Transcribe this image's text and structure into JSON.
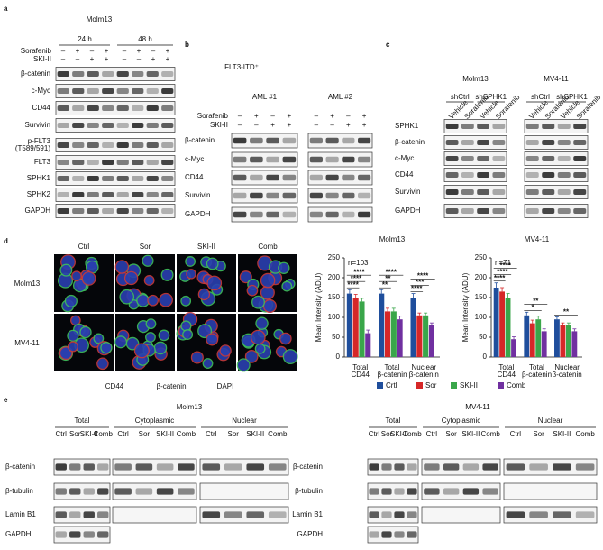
{
  "a": {
    "label": "a",
    "title": "Molm13",
    "timepoints": [
      "24 h",
      "48 h"
    ],
    "treatments": [
      "Sorafenib",
      "SKI-II"
    ],
    "signs": [
      [
        "–",
        "+",
        "–",
        "+",
        "–",
        "+",
        "–",
        "+"
      ],
      [
        "–",
        "–",
        "+",
        "+",
        "–",
        "–",
        "+",
        "+"
      ]
    ],
    "rows": [
      "β-catenin",
      "c-Myc",
      "CD44",
      "Survivin",
      [
        "p-FLT3",
        "(T589/591)"
      ],
      "FLT3",
      "SPHK1",
      "SPHK2",
      "GAPDH"
    ]
  },
  "b": {
    "label": "b",
    "title": "FLT3-ITD⁺",
    "groups": [
      "AML #1",
      "AML #2"
    ],
    "treatments": [
      "Sorafenib",
      "SKI-II"
    ],
    "signs": [
      [
        "–",
        "+",
        "–",
        "+"
      ],
      [
        "–",
        "–",
        "+",
        "+"
      ]
    ],
    "rows": [
      "β-catenin",
      "c-Myc",
      "CD44",
      "Survivin",
      "GAPDH"
    ]
  },
  "c": {
    "label": "c",
    "cell_lines": [
      "Molm13",
      "MV4-11"
    ],
    "shrna": [
      "shCtrl",
      "shSPHK1"
    ],
    "lanes": [
      "Vehicle",
      "Sorafenib",
      "Vehicle",
      "Sorafenib"
    ],
    "rows": [
      "SPHK1",
      "β-catenin",
      "c-Myc",
      "CD44",
      "Survivin",
      "GAPDH"
    ]
  },
  "d": {
    "label": "d",
    "columns": [
      "Ctrl",
      "Sor",
      "SKI-II",
      "Comb"
    ],
    "rows": [
      "Molm13",
      "MV4-11"
    ],
    "stains": [
      {
        "name": "CD44",
        "color": "#d62728"
      },
      {
        "name": "β-catenin",
        "color": "#2ca02c"
      },
      {
        "name": "DAPI",
        "color": "#1f3fbf"
      }
    ]
  },
  "e": {
    "label": "e",
    "groups": [
      {
        "title": "Molm13"
      },
      {
        "title": "MV4-11"
      }
    ],
    "fractions": [
      "Total",
      "Cytoplasmic",
      "Nuclear"
    ],
    "lanes": [
      "Ctrl",
      "Sor",
      "SKI-II",
      "Comb"
    ],
    "rows": [
      "β-catenin",
      "β-tubulin",
      "Lamin B1",
      "GAPDH"
    ]
  },
  "chart_data": [
    {
      "type": "bar",
      "title": "Molm13",
      "y_label": "Mean Intensity (ADU)",
      "annotation": "n=103",
      "categories": [
        [
          "Total",
          "CD44"
        ],
        [
          "Total",
          "β-catenin"
        ],
        [
          "Nuclear",
          "β-catenin"
        ]
      ],
      "series": [
        {
          "name": "Crtl",
          "color": "#1f4e9c",
          "values": [
            160,
            160,
            150
          ],
          "errors": [
            10,
            10,
            10
          ]
        },
        {
          "name": "Sor",
          "color": "#d62728",
          "values": [
            150,
            115,
            105
          ],
          "errors": [
            8,
            8,
            6
          ]
        },
        {
          "name": "SKI-II",
          "color": "#3aa64a",
          "values": [
            140,
            115,
            105
          ],
          "errors": [
            8,
            8,
            6
          ]
        },
        {
          "name": "Comb",
          "color": "#7030a0",
          "values": [
            60,
            95,
            80
          ],
          "errors": [
            8,
            8,
            6
          ]
        }
      ],
      "significance": [
        [
          "****",
          "****",
          "****"
        ],
        [
          "****",
          "**",
          "**"
        ],
        [
          "****",
          "***",
          "****"
        ]
      ],
      "ylim": [
        0,
        250
      ],
      "yticks": [
        0,
        50,
        100,
        150,
        200,
        250
      ]
    },
    {
      "type": "bar",
      "title": "MV4-11",
      "y_label": "Mean Intensity (ADU)",
      "annotation": "n=71",
      "categories": [
        [
          "Total",
          "CD44"
        ],
        [
          "Total",
          "β-catenin"
        ],
        [
          "Nuclear",
          "β-catenin"
        ]
      ],
      "series": [
        {
          "name": "Crtl",
          "color": "#1f4e9c",
          "values": [
            175,
            105,
            95
          ],
          "errors": [
            12,
            8,
            6
          ]
        },
        {
          "name": "Sor",
          "color": "#d62728",
          "values": [
            165,
            85,
            80
          ],
          "errors": [
            10,
            8,
            6
          ]
        },
        {
          "name": "SKI-II",
          "color": "#3aa64a",
          "values": [
            150,
            95,
            80
          ],
          "errors": [
            10,
            8,
            6
          ]
        },
        {
          "name": "Comb",
          "color": "#7030a0",
          "values": [
            45,
            65,
            65
          ],
          "errors": [
            6,
            6,
            6
          ]
        }
      ],
      "significance": [
        [
          "****",
          "****",
          "****"
        ],
        [
          "**",
          "*"
        ],
        [
          "**"
        ]
      ],
      "ylim": [
        0,
        250
      ],
      "yticks": [
        0,
        50,
        100,
        150,
        200,
        250
      ]
    }
  ]
}
